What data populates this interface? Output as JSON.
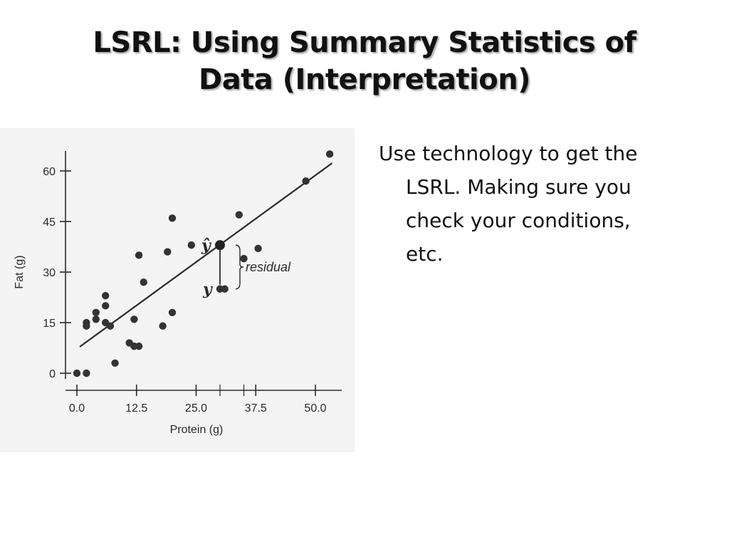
{
  "slide": {
    "title_lines": [
      "LSRL: Using Summary Statistics of",
      "Data (Interpretation)"
    ],
    "body_lines": [
      "Use technology to get the",
      "LSRL.  Making sure you",
      "check your conditions,",
      "etc."
    ]
  },
  "chart_data": {
    "type": "scatter",
    "title": "",
    "xlabel": "Protein (g)",
    "ylabel": "Fat (g)",
    "xlim": [
      -1,
      54
    ],
    "ylim": [
      -3,
      66
    ],
    "x_ticks": [
      0,
      12.5,
      25,
      37.5,
      50
    ],
    "x_tick_labels": [
      "0.0",
      "12.5",
      "25.0",
      "37.5",
      "50.0"
    ],
    "y_ticks": [
      0,
      15,
      30,
      45,
      60
    ],
    "y_tick_labels": [
      "0",
      "15",
      "30",
      "45",
      "60"
    ],
    "grid": false,
    "legend": "none",
    "points": [
      {
        "x": 0,
        "y": 0
      },
      {
        "x": 2,
        "y": 0
      },
      {
        "x": 2,
        "y": 14
      },
      {
        "x": 2,
        "y": 15
      },
      {
        "x": 4,
        "y": 16
      },
      {
        "x": 4,
        "y": 18
      },
      {
        "x": 6,
        "y": 20
      },
      {
        "x": 6,
        "y": 23
      },
      {
        "x": 6,
        "y": 15
      },
      {
        "x": 7,
        "y": 14
      },
      {
        "x": 8,
        "y": 3
      },
      {
        "x": 11,
        "y": 9
      },
      {
        "x": 12,
        "y": 8
      },
      {
        "x": 13,
        "y": 8
      },
      {
        "x": 12,
        "y": 16
      },
      {
        "x": 13,
        "y": 35
      },
      {
        "x": 14,
        "y": 27
      },
      {
        "x": 18,
        "y": 14
      },
      {
        "x": 19,
        "y": 36
      },
      {
        "x": 20,
        "y": 18
      },
      {
        "x": 20,
        "y": 46
      },
      {
        "x": 24,
        "y": 38
      },
      {
        "x": 30,
        "y": 38
      },
      {
        "x": 30,
        "y": 25
      },
      {
        "x": 31,
        "y": 25
      },
      {
        "x": 34,
        "y": 47
      },
      {
        "x": 35,
        "y": 34
      },
      {
        "x": 38,
        "y": 37
      },
      {
        "x": 48,
        "y": 57
      },
      {
        "x": 53,
        "y": 65
      }
    ],
    "regression_line": {
      "x": [
        0,
        55
      ],
      "y": [
        7,
        64
      ]
    },
    "annotation": {
      "label": "residual",
      "y_hat_symbol": "ŷ",
      "y_symbol": "y",
      "x": 30,
      "y_hat": 38,
      "y": 25
    }
  }
}
